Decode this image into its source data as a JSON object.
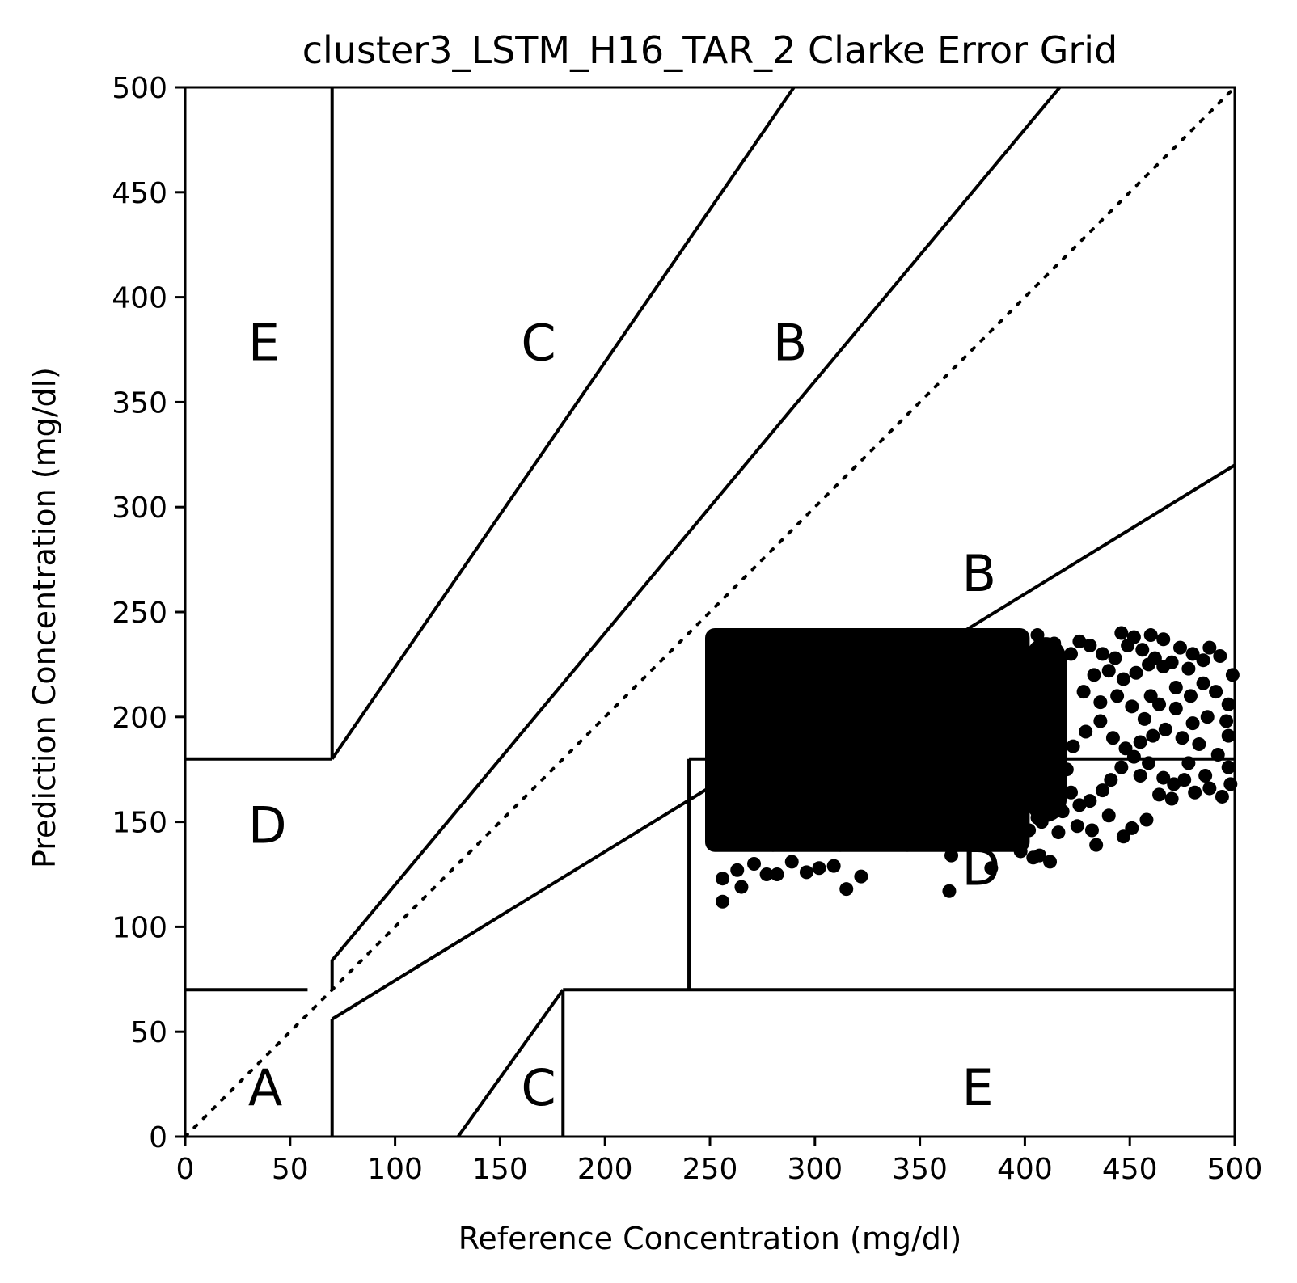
{
  "chart_data": {
    "type": "scatter",
    "title": "cluster3_LSTM_H16_TAR_2 Clarke Error Grid",
    "xlabel": "Reference Concentration (mg/dl)",
    "ylabel": "Prediction Concentration (mg/dl)",
    "xlim": [
      0,
      500
    ],
    "ylim": [
      0,
      500
    ],
    "xticks": [
      "0",
      "50",
      "100",
      "150",
      "200",
      "250",
      "300",
      "350",
      "400",
      "450",
      "500"
    ],
    "yticks": [
      "0",
      "50",
      "100",
      "150",
      "200",
      "250",
      "300",
      "350",
      "400",
      "450",
      "500"
    ],
    "grid": false,
    "legend": "none",
    "marker_color": "#000000",
    "reference_line": {
      "style": "dotted",
      "from": [
        0,
        0
      ],
      "to": [
        500,
        500
      ]
    },
    "zone_lines": [
      {
        "points": [
          [
            0,
            70
          ],
          [
            58.33,
            70
          ]
        ]
      },
      {
        "points": [
          [
            70,
            84
          ],
          [
            416.67,
            500
          ]
        ]
      },
      {
        "points": [
          [
            70,
            180
          ],
          [
            290,
            500
          ]
        ]
      },
      {
        "points": [
          [
            70,
            56
          ],
          [
            70,
            0
          ]
        ]
      },
      {
        "points": [
          [
            70,
            56
          ],
          [
            500,
            320
          ]
        ]
      },
      {
        "points": [
          [
            70,
            180
          ],
          [
            70,
            500
          ]
        ]
      },
      {
        "points": [
          [
            0,
            180
          ],
          [
            70,
            180
          ]
        ]
      },
      {
        "points": [
          [
            70,
            70
          ],
          [
            70,
            84
          ]
        ]
      },
      {
        "points": [
          [
            130,
            0
          ],
          [
            180,
            70
          ]
        ]
      },
      {
        "points": [
          [
            180,
            70
          ],
          [
            180,
            0
          ]
        ]
      },
      {
        "points": [
          [
            180,
            70
          ],
          [
            500,
            70
          ]
        ]
      },
      {
        "points": [
          [
            240,
            70
          ],
          [
            240,
            180
          ]
        ]
      },
      {
        "points": [
          [
            240,
            180
          ],
          [
            500,
            180
          ]
        ]
      }
    ],
    "zone_labels": [
      {
        "text": "A",
        "x": 30,
        "y": 15
      },
      {
        "text": "B",
        "x": 370,
        "y": 260
      },
      {
        "text": "B",
        "x": 280,
        "y": 370
      },
      {
        "text": "C",
        "x": 160,
        "y": 370
      },
      {
        "text": "C",
        "x": 160,
        "y": 15
      },
      {
        "text": "D",
        "x": 30,
        "y": 140
      },
      {
        "text": "D",
        "x": 370,
        "y": 120
      },
      {
        "text": "E",
        "x": 30,
        "y": 370
      },
      {
        "text": "E",
        "x": 370,
        "y": 15
      }
    ],
    "point_cloud": {
      "description_of_density": "dense block of points",
      "x_range": [
        250,
        420
      ],
      "y_range": [
        138,
        240
      ]
    },
    "points": [
      [
        256,
        112
      ],
      [
        265,
        119
      ],
      [
        277,
        125
      ],
      [
        282,
        125
      ],
      [
        296,
        126
      ],
      [
        302,
        128
      ],
      [
        315,
        118
      ],
      [
        322,
        124
      ],
      [
        256,
        123
      ],
      [
        263,
        127
      ],
      [
        271,
        130
      ],
      [
        289,
        131
      ],
      [
        309,
        129
      ],
      [
        364,
        117
      ],
      [
        384,
        128
      ],
      [
        404,
        133
      ],
      [
        412,
        131
      ],
      [
        365,
        134
      ],
      [
        398,
        136
      ],
      [
        407,
        134
      ],
      [
        416,
        145
      ],
      [
        425,
        148
      ],
      [
        432,
        146
      ],
      [
        440,
        153
      ],
      [
        434,
        139
      ],
      [
        447,
        143
      ],
      [
        451,
        147
      ],
      [
        458,
        151
      ],
      [
        464,
        163
      ],
      [
        470,
        161
      ],
      [
        476,
        170
      ],
      [
        481,
        164
      ],
      [
        488,
        166
      ],
      [
        494,
        162
      ],
      [
        498,
        168
      ],
      [
        497,
        176
      ],
      [
        486,
        172
      ],
      [
        478,
        178
      ],
      [
        471,
        168
      ],
      [
        466,
        171
      ],
      [
        459,
        178
      ],
      [
        455,
        172
      ],
      [
        452,
        181
      ],
      [
        446,
        176
      ],
      [
        441,
        170
      ],
      [
        437,
        165
      ],
      [
        431,
        160
      ],
      [
        426,
        158
      ],
      [
        422,
        164
      ],
      [
        420,
        175
      ],
      [
        423,
        186
      ],
      [
        429,
        193
      ],
      [
        436,
        198
      ],
      [
        442,
        190
      ],
      [
        448,
        185
      ],
      [
        455,
        188
      ],
      [
        461,
        191
      ],
      [
        467,
        194
      ],
      [
        475,
        190
      ],
      [
        483,
        187
      ],
      [
        492,
        182
      ],
      [
        497,
        191
      ],
      [
        496,
        198
      ],
      [
        487,
        200
      ],
      [
        480,
        197
      ],
      [
        472,
        204
      ],
      [
        464,
        206
      ],
      [
        457,
        199
      ],
      [
        451,
        205
      ],
      [
        444,
        210
      ],
      [
        436,
        207
      ],
      [
        428,
        212
      ],
      [
        433,
        220
      ],
      [
        440,
        222
      ],
      [
        447,
        218
      ],
      [
        453,
        221
      ],
      [
        459,
        225
      ],
      [
        466,
        224
      ],
      [
        472,
        214
      ],
      [
        479,
        210
      ],
      [
        485,
        216
      ],
      [
        491,
        212
      ],
      [
        497,
        206
      ],
      [
        499,
        220
      ],
      [
        493,
        229
      ],
      [
        485,
        227
      ],
      [
        478,
        223
      ],
      [
        470,
        226
      ],
      [
        462,
        228
      ],
      [
        456,
        232
      ],
      [
        449,
        234
      ],
      [
        443,
        228
      ],
      [
        437,
        230
      ],
      [
        431,
        234
      ],
      [
        426,
        236
      ],
      [
        422,
        230
      ],
      [
        446,
        240
      ],
      [
        452,
        238
      ],
      [
        460,
        239
      ],
      [
        466,
        237
      ],
      [
        474,
        233
      ],
      [
        480,
        230
      ],
      [
        488,
        233
      ],
      [
        460,
        210
      ],
      [
        415,
        170
      ],
      [
        418,
        155
      ],
      [
        412,
        160
      ],
      [
        408,
        150
      ],
      [
        402,
        146
      ],
      [
        395,
        144
      ],
      [
        386,
        140
      ],
      [
        380,
        143
      ],
      [
        374,
        141
      ],
      [
        368,
        139
      ],
      [
        360,
        142
      ],
      [
        352,
        140
      ],
      [
        344,
        139
      ],
      [
        336,
        141
      ],
      [
        328,
        140
      ],
      [
        320,
        142
      ],
      [
        312,
        139
      ],
      [
        304,
        141
      ],
      [
        296,
        140
      ],
      [
        288,
        142
      ],
      [
        280,
        139
      ],
      [
        272,
        141
      ],
      [
        264,
        140
      ],
      [
        258,
        142
      ],
      [
        252,
        145
      ],
      [
        256,
        150
      ],
      [
        262,
        156
      ],
      [
        270,
        152
      ],
      [
        278,
        158
      ],
      [
        286,
        150
      ],
      [
        294,
        155
      ],
      [
        302,
        150
      ],
      [
        310,
        158
      ],
      [
        318,
        152
      ],
      [
        326,
        156
      ],
      [
        334,
        150
      ],
      [
        342,
        154
      ],
      [
        350,
        158
      ],
      [
        358,
        150
      ],
      [
        366,
        156
      ],
      [
        374,
        152
      ],
      [
        382,
        158
      ],
      [
        390,
        150
      ],
      [
        398,
        156
      ],
      [
        406,
        152
      ],
      [
        414,
        158
      ],
      [
        252,
        162
      ],
      [
        260,
        168
      ],
      [
        268,
        164
      ],
      [
        276,
        170
      ],
      [
        284,
        166
      ],
      [
        292,
        172
      ],
      [
        300,
        168
      ],
      [
        308,
        174
      ],
      [
        316,
        166
      ],
      [
        324,
        172
      ],
      [
        332,
        168
      ],
      [
        340,
        174
      ],
      [
        348,
        166
      ],
      [
        356,
        170
      ],
      [
        364,
        176
      ],
      [
        372,
        168
      ],
      [
        380,
        172
      ],
      [
        388,
        166
      ],
      [
        396,
        174
      ],
      [
        404,
        168
      ],
      [
        412,
        176
      ],
      [
        252,
        180
      ],
      [
        260,
        186
      ],
      [
        268,
        182
      ],
      [
        276,
        188
      ],
      [
        284,
        184
      ],
      [
        292,
        190
      ],
      [
        300,
        186
      ],
      [
        308,
        192
      ],
      [
        316,
        184
      ],
      [
        324,
        190
      ],
      [
        332,
        186
      ],
      [
        340,
        192
      ],
      [
        348,
        184
      ],
      [
        356,
        188
      ],
      [
        364,
        194
      ],
      [
        372,
        186
      ],
      [
        380,
        190
      ],
      [
        388,
        184
      ],
      [
        396,
        192
      ],
      [
        404,
        186
      ],
      [
        412,
        194
      ],
      [
        252,
        198
      ],
      [
        260,
        204
      ],
      [
        268,
        200
      ],
      [
        276,
        206
      ],
      [
        284,
        202
      ],
      [
        292,
        208
      ],
      [
        300,
        204
      ],
      [
        308,
        210
      ],
      [
        316,
        202
      ],
      [
        324,
        208
      ],
      [
        332,
        204
      ],
      [
        340,
        210
      ],
      [
        348,
        202
      ],
      [
        356,
        206
      ],
      [
        364,
        212
      ],
      [
        372,
        204
      ],
      [
        380,
        208
      ],
      [
        388,
        202
      ],
      [
        396,
        210
      ],
      [
        404,
        204
      ],
      [
        412,
        212
      ],
      [
        252,
        216
      ],
      [
        260,
        222
      ],
      [
        268,
        218
      ],
      [
        276,
        224
      ],
      [
        284,
        220
      ],
      [
        292,
        226
      ],
      [
        300,
        222
      ],
      [
        308,
        228
      ],
      [
        316,
        220
      ],
      [
        324,
        226
      ],
      [
        332,
        222
      ],
      [
        340,
        228
      ],
      [
        348,
        220
      ],
      [
        356,
        224
      ],
      [
        364,
        230
      ],
      [
        372,
        222
      ],
      [
        380,
        226
      ],
      [
        388,
        220
      ],
      [
        396,
        228
      ],
      [
        404,
        222
      ],
      [
        412,
        230
      ],
      [
        254,
        234
      ],
      [
        262,
        238
      ],
      [
        270,
        236
      ],
      [
        278,
        239
      ],
      [
        286,
        235
      ],
      [
        294,
        238
      ],
      [
        302,
        236
      ],
      [
        310,
        239
      ],
      [
        318,
        235
      ],
      [
        326,
        238
      ],
      [
        334,
        236
      ],
      [
        342,
        239
      ],
      [
        350,
        235
      ],
      [
        358,
        238
      ],
      [
        366,
        236
      ],
      [
        374,
        239
      ],
      [
        382,
        235
      ],
      [
        390,
        238
      ],
      [
        398,
        236
      ],
      [
        406,
        239
      ],
      [
        414,
        235
      ]
    ]
  }
}
